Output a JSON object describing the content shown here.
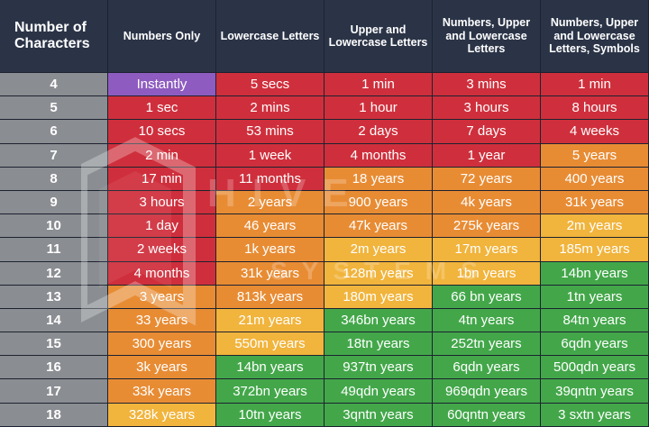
{
  "header": {
    "col0": "Number of Characters",
    "col1": "Numbers Only",
    "col2": "Lowercase Letters",
    "col3": "Upper and Lowercase Letters",
    "col4": "Numbers, Upper and Lowercase Letters",
    "col5": "Numbers, Upper and Lowercase Letters, Symbols"
  },
  "watermark": {
    "line1": "HIVE",
    "line2": "SYSTEMS"
  },
  "colors": {
    "purple": "#8e5cc0",
    "red": "#cf2f3c",
    "orange": "#e88c34",
    "yellow": "#f1b43c",
    "green": "#43a74a",
    "gray": "#8a8d91",
    "header": "#2b3447"
  },
  "rows": [
    {
      "chars": "4",
      "cells": [
        [
          "Instantly",
          "purple"
        ],
        [
          "5 secs",
          "red"
        ],
        [
          "1 min",
          "red"
        ],
        [
          "3 mins",
          "red"
        ],
        [
          "1 min",
          "red"
        ]
      ]
    },
    {
      "chars": "5",
      "cells": [
        [
          "1 sec",
          "red"
        ],
        [
          "2 mins",
          "red"
        ],
        [
          "1 hour",
          "red"
        ],
        [
          "3 hours",
          "red"
        ],
        [
          "8 hours",
          "red"
        ]
      ]
    },
    {
      "chars": "6",
      "cells": [
        [
          "10 secs",
          "red"
        ],
        [
          "53 mins",
          "red"
        ],
        [
          "2 days",
          "red"
        ],
        [
          "7 days",
          "red"
        ],
        [
          "4 weeks",
          "red"
        ]
      ]
    },
    {
      "chars": "7",
      "cells": [
        [
          "2 min",
          "red"
        ],
        [
          "1 week",
          "red"
        ],
        [
          "4 months",
          "red"
        ],
        [
          "1 year",
          "red"
        ],
        [
          "5 years",
          "orange"
        ]
      ]
    },
    {
      "chars": "8",
      "cells": [
        [
          "17 min",
          "red"
        ],
        [
          "11 months",
          "red"
        ],
        [
          "18 years",
          "orange"
        ],
        [
          "72 years",
          "orange"
        ],
        [
          "400 years",
          "orange"
        ]
      ]
    },
    {
      "chars": "9",
      "cells": [
        [
          "3 hours",
          "red"
        ],
        [
          "2 years",
          "orange"
        ],
        [
          "900 years",
          "orange"
        ],
        [
          "4k years",
          "orange"
        ],
        [
          "31k years",
          "orange"
        ]
      ]
    },
    {
      "chars": "10",
      "cells": [
        [
          "1 day",
          "red"
        ],
        [
          "46 years",
          "orange"
        ],
        [
          "47k years",
          "orange"
        ],
        [
          "275k years",
          "orange"
        ],
        [
          "2m years",
          "yellow"
        ]
      ]
    },
    {
      "chars": "11",
      "cells": [
        [
          "2 weeks",
          "red"
        ],
        [
          "1k years",
          "orange"
        ],
        [
          "2m years",
          "yellow"
        ],
        [
          "17m years",
          "yellow"
        ],
        [
          "185m years",
          "yellow"
        ]
      ]
    },
    {
      "chars": "12",
      "cells": [
        [
          "4 months",
          "red"
        ],
        [
          "31k years",
          "orange"
        ],
        [
          "128m years",
          "yellow"
        ],
        [
          "1bn years",
          "yellow"
        ],
        [
          "14bn years",
          "green"
        ]
      ]
    },
    {
      "chars": "13",
      "cells": [
        [
          "3 years",
          "orange"
        ],
        [
          "813k years",
          "orange"
        ],
        [
          "180m years",
          "yellow"
        ],
        [
          "66 bn years",
          "green"
        ],
        [
          "1tn years",
          "green"
        ]
      ]
    },
    {
      "chars": "14",
      "cells": [
        [
          "33 years",
          "orange"
        ],
        [
          "21m years",
          "yellow"
        ],
        [
          "346bn years",
          "green"
        ],
        [
          "4tn years",
          "green"
        ],
        [
          "84tn years",
          "green"
        ]
      ]
    },
    {
      "chars": "15",
      "cells": [
        [
          "300 years",
          "orange"
        ],
        [
          "550m years",
          "yellow"
        ],
        [
          "18tn years",
          "green"
        ],
        [
          "252tn years",
          "green"
        ],
        [
          "6qdn years",
          "green"
        ]
      ]
    },
    {
      "chars": "16",
      "cells": [
        [
          "3k years",
          "orange"
        ],
        [
          "14bn years",
          "green"
        ],
        [
          "937tn years",
          "green"
        ],
        [
          "6qdn years",
          "green"
        ],
        [
          "500qdn years",
          "green"
        ]
      ]
    },
    {
      "chars": "17",
      "cells": [
        [
          "33k years",
          "orange"
        ],
        [
          "372bn years",
          "green"
        ],
        [
          "49qdn years",
          "green"
        ],
        [
          "969qdn years",
          "green"
        ],
        [
          "39qntn years",
          "green"
        ]
      ]
    },
    {
      "chars": "18",
      "cells": [
        [
          "328k years",
          "yellow"
        ],
        [
          "10tn years",
          "green"
        ],
        [
          "3qntn years",
          "green"
        ],
        [
          "60qntn years",
          "green"
        ],
        [
          "3 sxtn years",
          "green"
        ]
      ]
    }
  ]
}
